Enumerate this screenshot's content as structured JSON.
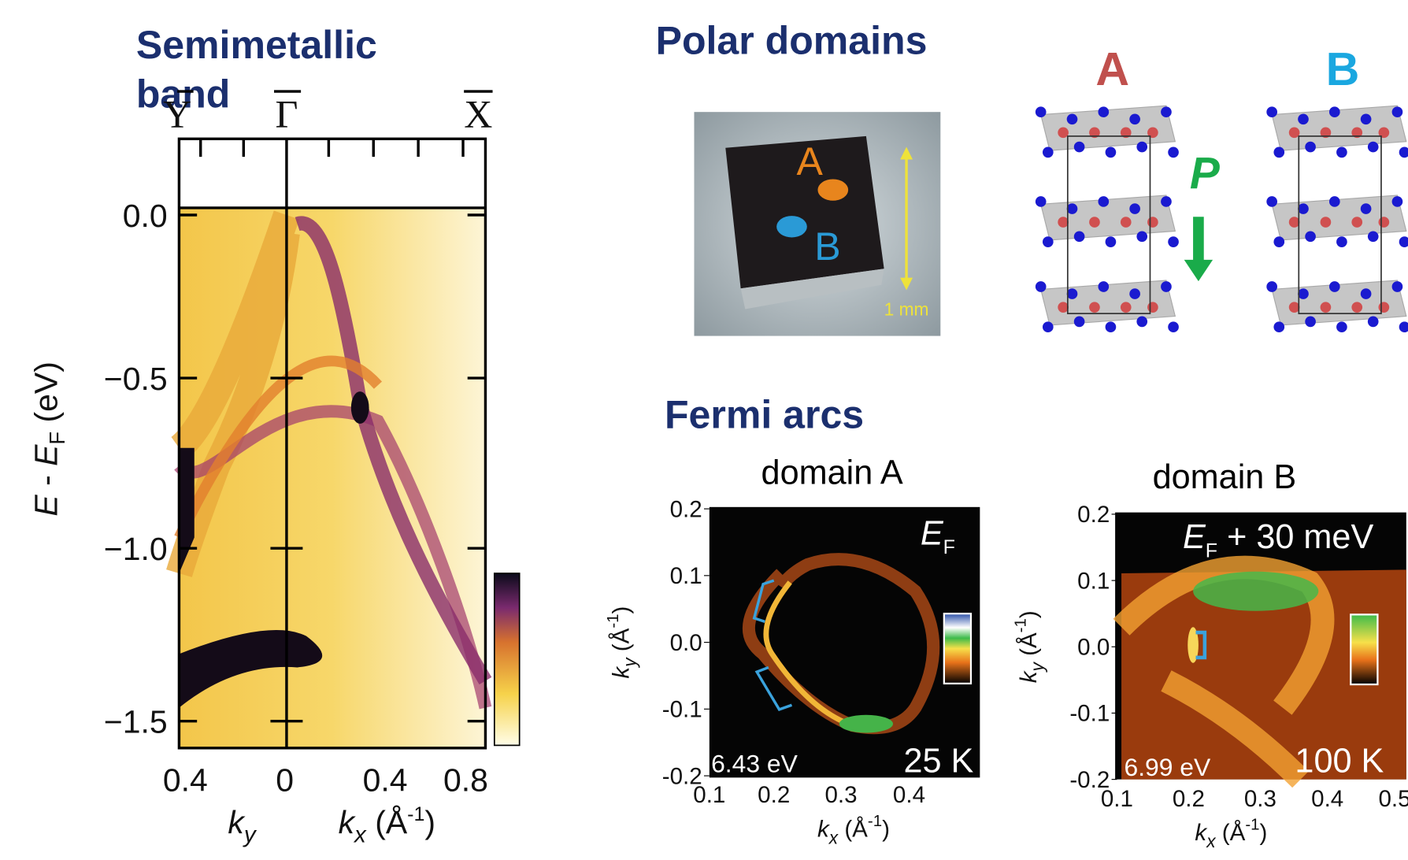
{
  "band": {
    "title": [
      "Semimetallic",
      "band"
    ],
    "points": [
      "Y",
      "Γ",
      "X"
    ],
    "yticks": [
      "0.0",
      "−0.5",
      "−1.0",
      "−1.5"
    ],
    "y_label": [
      "E",
      " - ",
      "E",
      "F",
      " (eV)"
    ],
    "xticks": [
      "0.4",
      "0",
      "0.4",
      "0.8"
    ],
    "x_label_left": [
      "k",
      "y"
    ],
    "x_label_right": [
      "k",
      "x",
      " (Å",
      "-1",
      ")"
    ]
  },
  "polar": {
    "title": "Polar domains",
    "photo_labels": [
      "A",
      "B",
      "1 mm"
    ],
    "structure_labels": [
      "A",
      "B"
    ],
    "polarization": "P"
  },
  "fermi": {
    "title": "Fermi arcs",
    "panels": [
      {
        "title": "domain A",
        "yticks": [
          "0.2",
          "0.1",
          "0.0",
          "-0.1",
          "-0.2"
        ],
        "xticks": [
          "0.1",
          "0.2",
          "0.3",
          "0.4"
        ],
        "energy": [
          "E",
          "F",
          ""
        ],
        "photon": "6.43 eV",
        "temperature": "25 K"
      },
      {
        "title": "domain B",
        "yticks": [
          "0.2",
          "0.1",
          "0.0",
          "-0.1",
          "-0.2"
        ],
        "xticks": [
          "0.1",
          "0.2",
          "0.3",
          "0.4",
          "0.5"
        ],
        "energy": [
          "E",
          "F",
          " + 30 meV"
        ],
        "photon": "6.99 eV",
        "temperature": "100 K"
      }
    ],
    "y_label": [
      "k",
      "y",
      " (Å",
      "-1",
      ")"
    ],
    "x_label": [
      "k",
      "x",
      " (Å",
      "-1",
      ")"
    ]
  }
}
